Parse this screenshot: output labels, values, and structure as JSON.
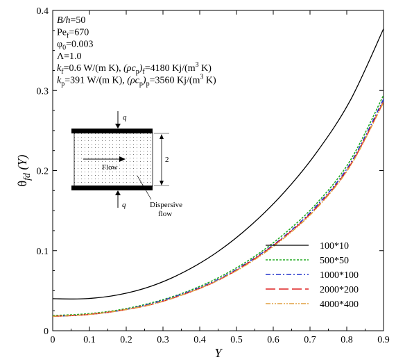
{
  "chart_data": {
    "type": "line",
    "xlabel": "Y",
    "ylabel": "θ_fd (Y)",
    "xlim": [
      0,
      0.9
    ],
    "ylim": [
      0,
      0.4
    ],
    "xticks": [
      "0",
      "0.1",
      "0.2",
      "0.3",
      "0.4",
      "0.5",
      "0.6",
      "0.7",
      "0.8",
      "0.9"
    ],
    "yticks": [
      "0",
      "0.1",
      "0.2",
      "0.3",
      "0.4"
    ],
    "grid": false,
    "legend_position": "bottom-right",
    "series": [
      {
        "name": "100*10",
        "color": "#000000",
        "dash": "solid",
        "x": [
          0,
          0.09,
          0.18,
          0.27,
          0.36,
          0.45,
          0.54,
          0.63,
          0.72,
          0.81,
          0.9
        ],
        "y": [
          0.04,
          0.04,
          0.045,
          0.056,
          0.074,
          0.099,
          0.132,
          0.173,
          0.224,
          0.288,
          0.377
        ]
      },
      {
        "name": "500*50",
        "color": "#22aa22",
        "dash": "dotted",
        "x": [
          0,
          0.09,
          0.18,
          0.27,
          0.36,
          0.45,
          0.54,
          0.63,
          0.72,
          0.81,
          0.9
        ],
        "y": [
          0.019,
          0.021,
          0.026,
          0.035,
          0.048,
          0.066,
          0.09,
          0.121,
          0.16,
          0.213,
          0.294
        ]
      },
      {
        "name": "1000*100",
        "color": "#2233cc",
        "dash": "dashdot",
        "x": [
          0,
          0.09,
          0.18,
          0.27,
          0.36,
          0.45,
          0.54,
          0.63,
          0.72,
          0.81,
          0.9
        ],
        "y": [
          0.018,
          0.02,
          0.025,
          0.034,
          0.047,
          0.064,
          0.088,
          0.118,
          0.157,
          0.209,
          0.289
        ]
      },
      {
        "name": "2000*200",
        "color": "#dd2222",
        "dash": "longdash",
        "x": [
          0,
          0.09,
          0.18,
          0.27,
          0.36,
          0.45,
          0.54,
          0.63,
          0.72,
          0.81,
          0.9
        ],
        "y": [
          0.018,
          0.02,
          0.025,
          0.033,
          0.046,
          0.063,
          0.087,
          0.117,
          0.155,
          0.207,
          0.286
        ]
      },
      {
        "name": "4000*400",
        "color": "#e0a040",
        "dash": "dashdotdot",
        "x": [
          0,
          0.09,
          0.18,
          0.27,
          0.36,
          0.45,
          0.54,
          0.63,
          0.72,
          0.81,
          0.9
        ],
        "y": [
          0.018,
          0.02,
          0.025,
          0.033,
          0.046,
          0.063,
          0.086,
          0.116,
          0.154,
          0.206,
          0.285
        ]
      }
    ],
    "annotations": {
      "params": [
        [
          {
            "t": "B/h",
            "s": "italic"
          },
          {
            "t": "=50"
          }
        ],
        [
          {
            "t": "Pe"
          },
          {
            "t": "f",
            "s": "sub"
          },
          {
            "t": "=670"
          }
        ],
        [
          {
            "t": "φ"
          },
          {
            "t": "0",
            "s": "sub"
          },
          {
            "t": "=0.003"
          }
        ],
        [
          {
            "t": "Λ=1.0"
          }
        ],
        [
          {
            "t": "k",
            "s": "italic"
          },
          {
            "t": "f",
            "s": "sub"
          },
          {
            "t": "=0.6 W/(m K), "
          },
          {
            "t": "(ρc",
            "s": "italic"
          },
          {
            "t": "p",
            "s": "sub"
          },
          {
            "t": ")",
            "s": "italic"
          },
          {
            "t": "f",
            "s": "sub"
          },
          {
            "t": "=4180 Kj/(m"
          },
          {
            "t": "3",
            "s": "sup"
          },
          {
            "t": " K)"
          }
        ],
        [
          {
            "t": "k",
            "s": "italic"
          },
          {
            "t": "p",
            "s": "sub"
          },
          {
            "t": "=391 W/(m K), "
          },
          {
            "t": "(ρc",
            "s": "italic"
          },
          {
            "t": "p",
            "s": "sub"
          },
          {
            "t": ")",
            "s": "italic"
          },
          {
            "t": "p",
            "s": "sub"
          },
          {
            "t": "=3560 Kj/(m"
          },
          {
            "t": "3",
            "s": "sup"
          },
          {
            "t": " K)"
          }
        ]
      ],
      "schematic": {
        "heat_flux_top": "q",
        "heat_flux_bottom": "q",
        "flow": "Flow",
        "height": "2",
        "dispersive_1": "Dispersive",
        "dispersive_2": "flow"
      }
    }
  }
}
